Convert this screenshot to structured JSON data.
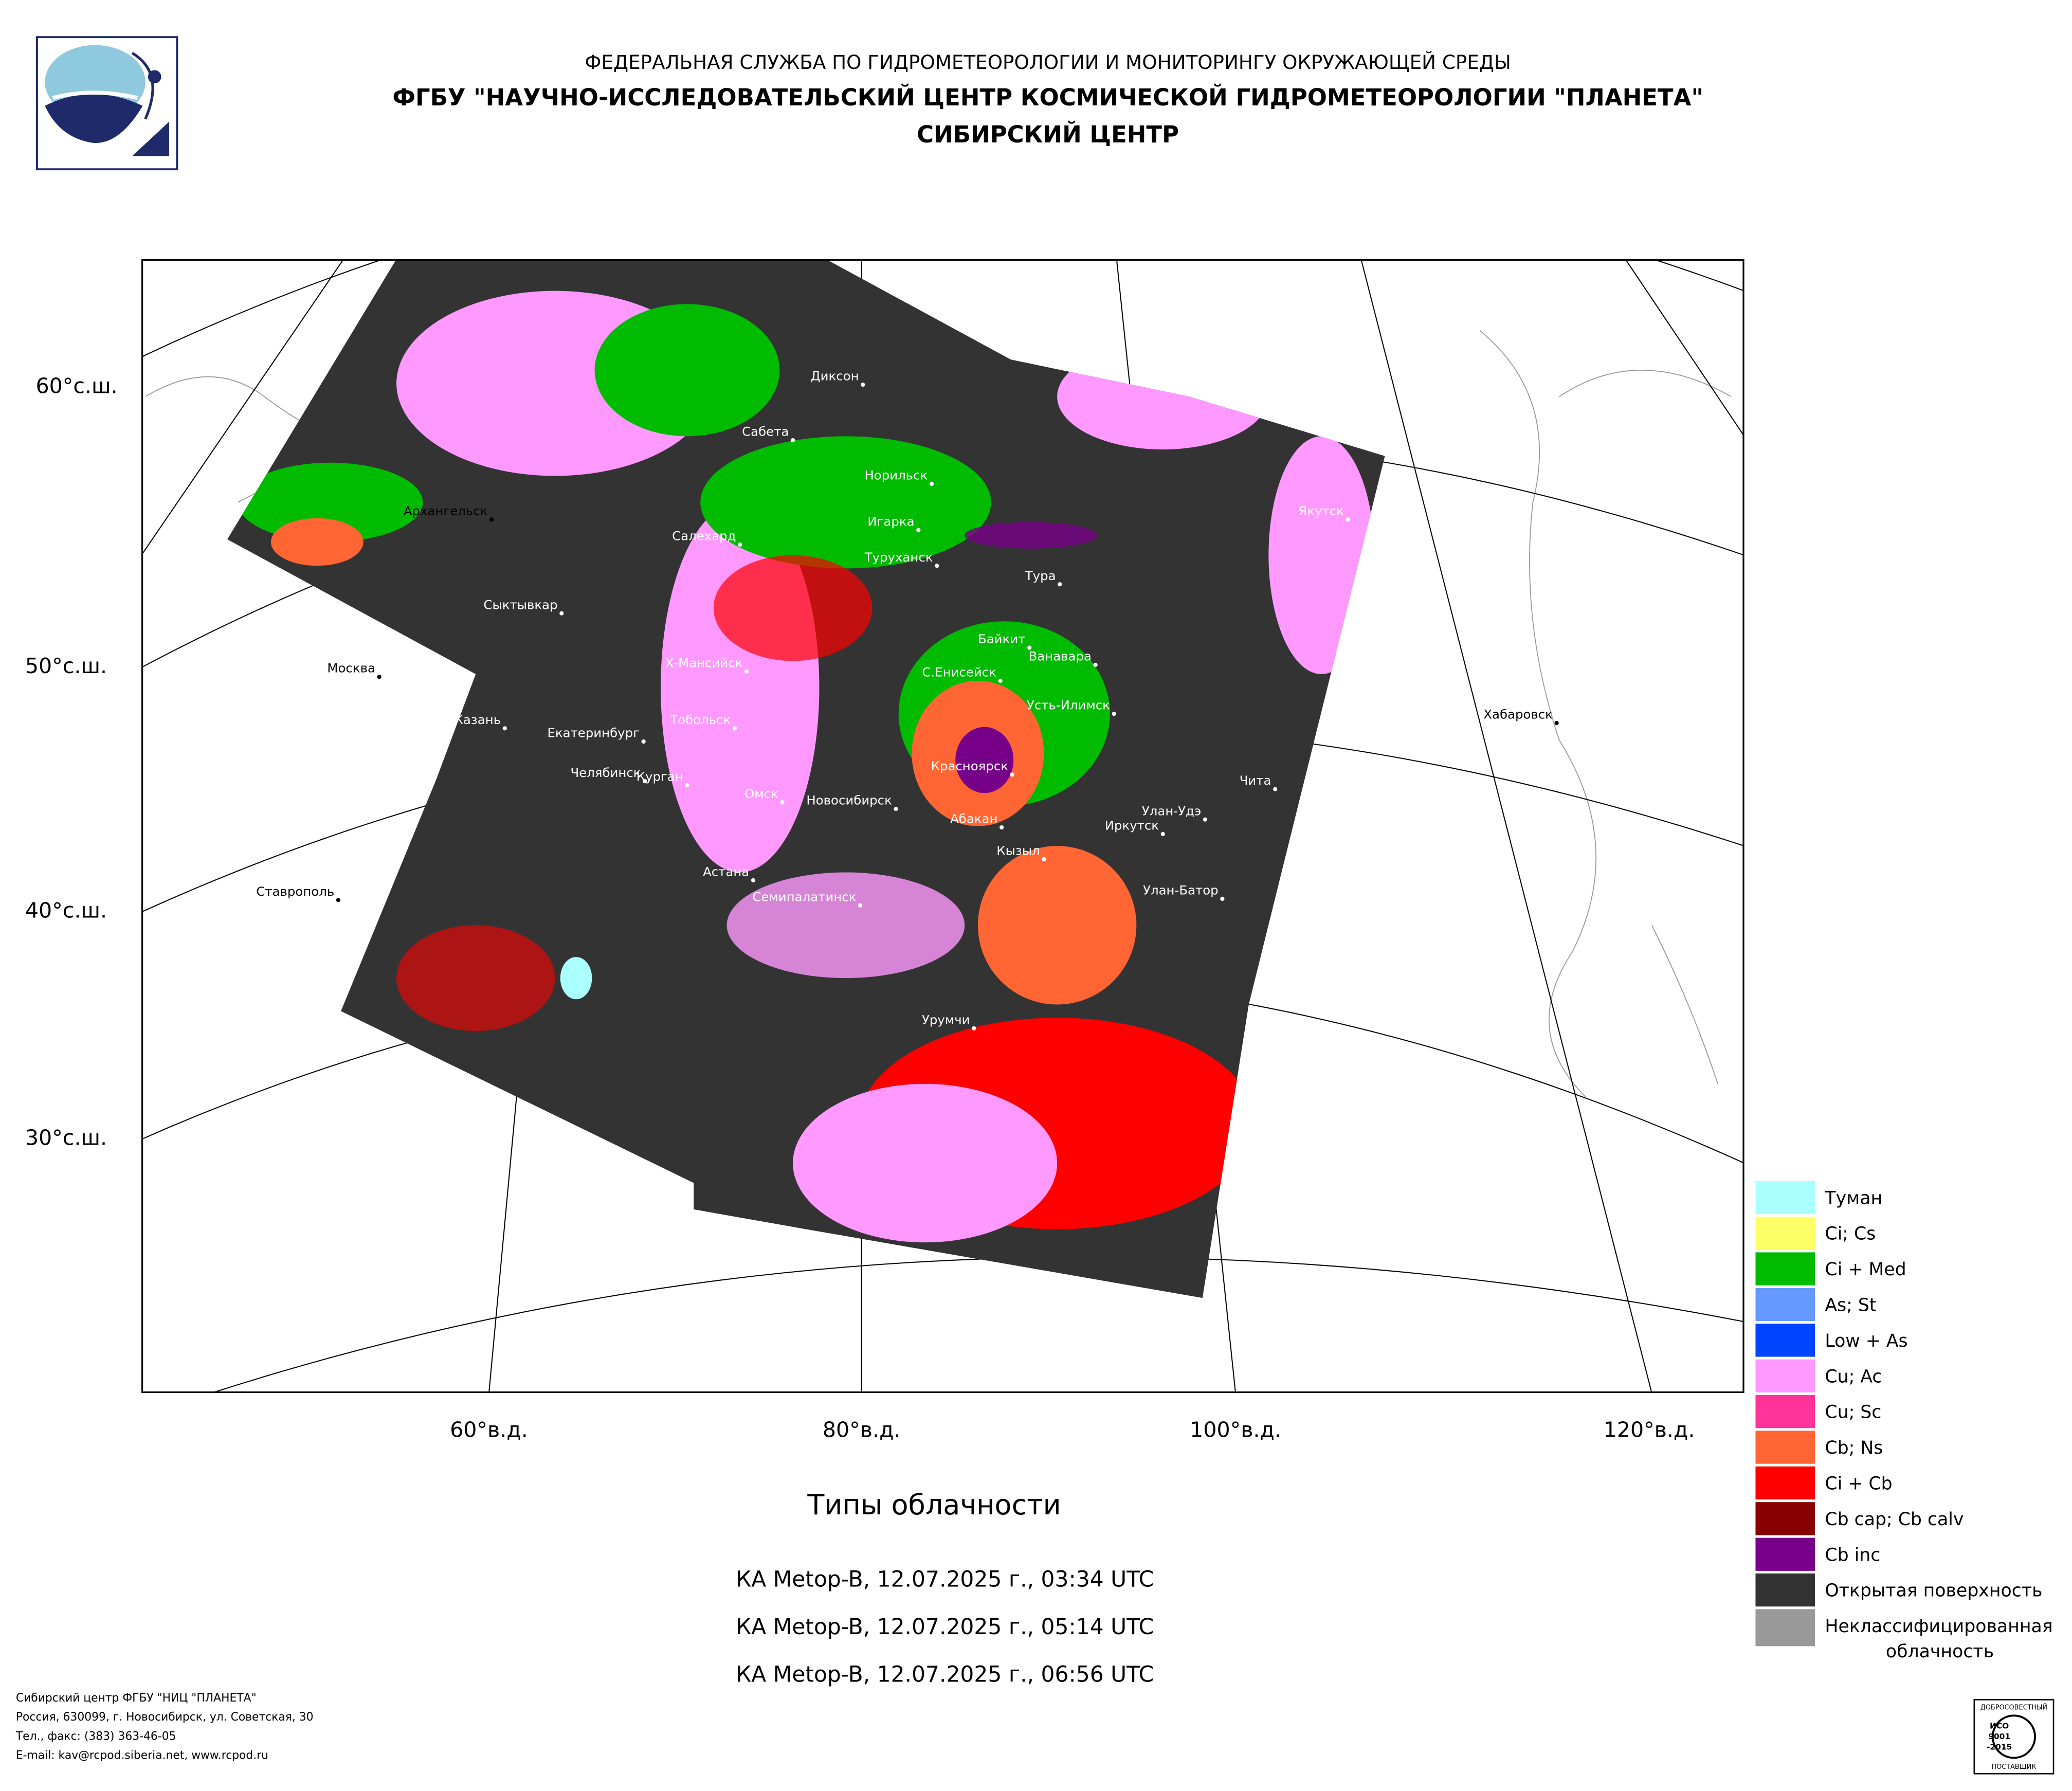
{
  "header": {
    "agency": "ФЕДЕРАЛЬНАЯ СЛУЖБА ПО ГИДРОМЕТЕОРОЛОГИИ И МОНИТОРИНГУ ОКРУЖАЮЩЕЙ СРЕДЫ",
    "institute": "ФГБУ \"НАУЧНО-ИССЛЕДОВАТЕЛЬСКИЙ ЦЕНТР КОСМИЧЕСКОЙ ГИДРОМЕТЕОРОЛОГИИ \"ПЛАНЕТА\"",
    "center": "СИБИРСКИЙ ЦЕНТР"
  },
  "map": {
    "cities": [
      "Диксон",
      "Сабета",
      "Норильск",
      "Архангельск",
      "Игарка",
      "Салехард",
      "Туруханск",
      "Тура",
      "Якутск",
      "Сыктывкар",
      "Байкит",
      "Ванавара",
      "Москва",
      "Х-Мансийск",
      "С.Енисейск",
      "Усть-Илимск",
      "Казань",
      "Тобольск",
      "Екатеринбург",
      "Хабаровск",
      "Красноярск",
      "Чита",
      "Челябинск",
      "Курган",
      "Омск",
      "Новосибирск",
      "Улан-Удэ",
      "Абакан",
      "Иркутск",
      "Кызыл",
      "Астана",
      "Ставрополь",
      "Улан-Батор",
      "Семипалатинск",
      "Урумчи"
    ],
    "latitude_labels": [
      "60°с.ш.",
      "50°с.ш.",
      "40°с.ш.",
      "30°с.ш."
    ],
    "longitude_labels": [
      "60°в.д.",
      "80°в.д.",
      "100°в.д.",
      "120°в.д."
    ]
  },
  "title": "Типы облачности",
  "passes": [
    "КА Metop-B, 12.07.2025 г., 03:34 UTC",
    "КА Metop-B, 12.07.2025 г., 05:14 UTC",
    "КА Metop-B, 12.07.2025 г., 06:56 UTC"
  ],
  "legend": [
    {
      "label": "Туман",
      "color": "#aaffff"
    },
    {
      "label": "Ci; Cs",
      "color": "#ffff66"
    },
    {
      "label": "Ci + Med",
      "color": "#00bb00"
    },
    {
      "label": "As; St",
      "color": "#6699ff"
    },
    {
      "label": "Low + As",
      "color": "#0044ff"
    },
    {
      "label": "Cu; Ac",
      "color": "#ff99ff"
    },
    {
      "label": "Cu; Sc",
      "color": "#ff3399"
    },
    {
      "label": "Cb; Ns",
      "color": "#ff6633"
    },
    {
      "label": "Ci + Cb",
      "color": "#ff0000"
    },
    {
      "label": "Cb cap; Cb calv",
      "color": "#880000"
    },
    {
      "label": "Cb inc",
      "color": "#770088"
    },
    {
      "label": "Открытая поверхность",
      "color": "#333333"
    },
    {
      "label": "Неклассифицированная",
      "label2": "облачность",
      "color": "#999999"
    }
  ],
  "footer": [
    "Сибирский центр ФГБУ \"НИЦ \"ПЛАНЕТА\"",
    "Россия, 630099, г. Новосибирск, ул. Советская, 30",
    "Тел., факс: (383) 363-46-05",
    "E-mail: kav@rcpod.siberia.net, www.rcpod.ru"
  ],
  "badge": {
    "top": "ДОБРОСОВЕСТНЫЙ",
    "standard": "ИСО",
    "number": "9001",
    "year": "-2015",
    "bottom": "ПОСТАВЩИК"
  }
}
